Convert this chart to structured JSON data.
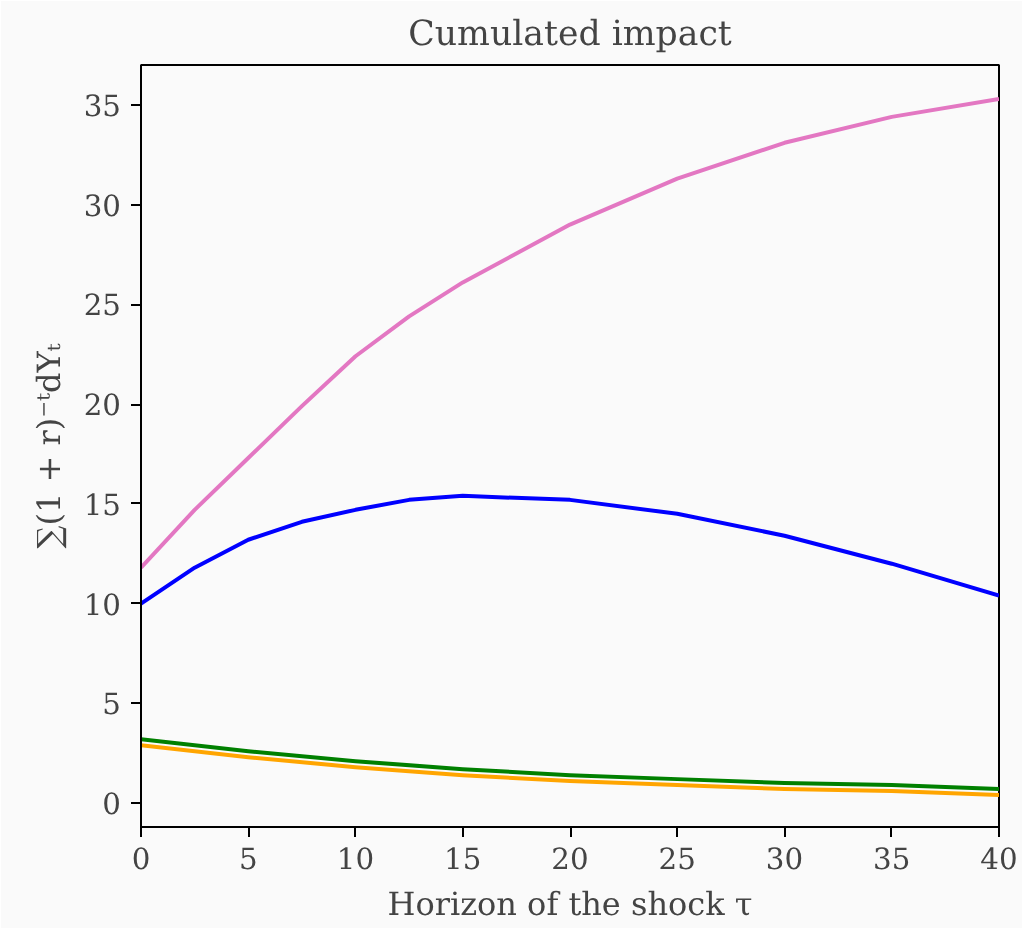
{
  "chart_data": {
    "type": "line",
    "title": "Cumulated impact",
    "xlabel": "Horizon of the shock τ",
    "ylabel": "∑(1 + r)⁻ᵗdYₜ",
    "x": [
      0,
      5,
      10,
      15,
      20,
      25,
      30,
      35,
      40
    ],
    "series": [
      {
        "color": "#e377c2",
        "x": [
          0,
          2.5,
          5,
          7.5,
          10,
          12.5,
          15,
          20,
          25,
          30,
          35,
          40
        ],
        "values": [
          11.8,
          14.7,
          17.3,
          19.9,
          22.4,
          24.4,
          26.1,
          29.0,
          31.3,
          33.1,
          34.4,
          35.3
        ]
      },
      {
        "color": "#0000ff",
        "x": [
          0,
          2.5,
          5,
          7.5,
          10,
          12.5,
          15,
          20,
          25,
          30,
          35,
          40
        ],
        "values": [
          10.0,
          11.8,
          13.2,
          14.1,
          14.7,
          15.2,
          15.4,
          15.2,
          14.5,
          13.4,
          12.0,
          10.4
        ]
      },
      {
        "color": "#ffa500",
        "values": [
          2.9,
          2.3,
          1.8,
          1.4,
          1.1,
          0.9,
          0.7,
          0.6,
          0.4
        ]
      },
      {
        "color": "#008000",
        "values": [
          3.2,
          2.6,
          2.1,
          1.7,
          1.4,
          1.2,
          1.0,
          0.9,
          0.7
        ]
      }
    ],
    "xlim": [
      0,
      40
    ],
    "ylim": [
      -1.2,
      37
    ],
    "xticks": [
      0,
      5,
      10,
      15,
      20,
      25,
      30,
      35,
      40
    ],
    "yticks": [
      0,
      5,
      10,
      15,
      20,
      25,
      30,
      35
    ],
    "grid": false,
    "marker": "none",
    "line_style": "solid"
  }
}
